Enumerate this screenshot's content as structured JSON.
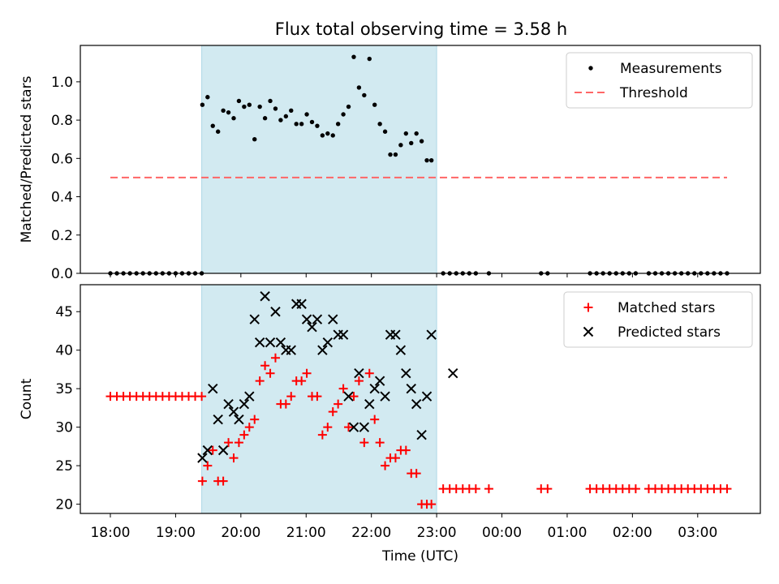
{
  "title": "Flux total observing time = 3.58 h",
  "colors": {
    "shade": "#add8e6",
    "threshold": "#ff6666",
    "matched": "#ff0000",
    "predicted": "#000000",
    "measurements": "#000000"
  },
  "chart_data": [
    {
      "type": "scatter",
      "ylabel": "Matched/Predicted stars",
      "xlabel": "",
      "x_unit": "hours since 18:00 UTC",
      "xlim": [
        -0.46,
        9.96
      ],
      "ylim": [
        0,
        1.19
      ],
      "yticks": [
        0.0,
        0.2,
        0.4,
        0.6,
        0.8,
        1.0
      ],
      "ytick_labels": [
        "0.0",
        "0.2",
        "0.4",
        "0.6",
        "0.8",
        "1.0"
      ],
      "shaded_interval": [
        1.4,
        5.0
      ],
      "legend": {
        "location": "upper right",
        "entries": [
          "Measurements",
          "Threshold"
        ]
      },
      "series": [
        {
          "name": "Measurements",
          "marker": "dot",
          "x": [
            0.0,
            0.1,
            0.2,
            0.3,
            0.4,
            0.5,
            0.6,
            0.7,
            0.8,
            0.9,
            1.0,
            1.1,
            1.2,
            1.3,
            1.4,
            1.41,
            1.49,
            1.57,
            1.65,
            1.73,
            1.81,
            1.89,
            1.97,
            2.05,
            2.13,
            2.21,
            2.29,
            2.37,
            2.45,
            2.53,
            2.61,
            2.69,
            2.77,
            2.85,
            2.93,
            3.01,
            3.09,
            3.17,
            3.25,
            3.33,
            3.41,
            3.49,
            3.57,
            3.65,
            3.73,
            3.81,
            3.89,
            3.97,
            4.05,
            4.13,
            4.21,
            4.29,
            4.37,
            4.45,
            4.53,
            4.61,
            4.69,
            4.77,
            4.85,
            4.92,
            5.1,
            5.2,
            5.3,
            5.4,
            5.5,
            5.6,
            5.8,
            6.6,
            6.7,
            7.35,
            7.45,
            7.55,
            7.65,
            7.75,
            7.85,
            7.95,
            8.05,
            8.25,
            8.35,
            8.45,
            8.55,
            8.65,
            8.75,
            8.85,
            8.95,
            9.05,
            9.15,
            9.25,
            9.35,
            9.45
          ],
          "y": [
            0,
            0,
            0,
            0,
            0,
            0,
            0,
            0,
            0,
            0,
            0,
            0,
            0,
            0,
            0,
            0.88,
            0.92,
            0.77,
            0.74,
            0.85,
            0.84,
            0.81,
            0.9,
            0.87,
            0.88,
            0.7,
            0.87,
            0.81,
            0.9,
            0.86,
            0.8,
            0.82,
            0.85,
            0.78,
            0.78,
            0.83,
            0.79,
            0.77,
            0.72,
            0.73,
            0.72,
            0.78,
            0.83,
            0.87,
            1.13,
            0.97,
            0.93,
            1.12,
            0.88,
            0.78,
            0.74,
            0.62,
            0.62,
            0.67,
            0.73,
            0.68,
            0.73,
            0.69,
            0.59,
            0.59,
            0,
            0,
            0,
            0,
            0,
            0,
            0,
            0,
            0,
            0,
            0,
            0,
            0,
            0,
            0,
            0,
            0,
            0,
            0,
            0,
            0,
            0,
            0,
            0,
            0,
            0,
            0,
            0,
            0,
            0
          ]
        },
        {
          "name": "Threshold",
          "style": "dashed",
          "x": [
            0.0,
            9.45
          ],
          "y": [
            0.5,
            0.5
          ]
        }
      ]
    },
    {
      "type": "scatter",
      "ylabel": "Count",
      "xlabel": "Time (UTC)",
      "x_unit": "hours since 18:00 UTC",
      "xlim": [
        -0.46,
        9.96
      ],
      "ylim": [
        18.8,
        48.5
      ],
      "yticks": [
        20,
        25,
        30,
        35,
        40,
        45
      ],
      "ytick_labels": [
        "20",
        "25",
        "30",
        "35",
        "40",
        "45"
      ],
      "xticks": [
        0,
        1,
        2,
        3,
        4,
        5,
        6,
        7,
        8,
        9
      ],
      "xtick_labels": [
        "18:00",
        "19:00",
        "20:00",
        "21:00",
        "22:00",
        "23:00",
        "00:00",
        "01:00",
        "02:00",
        "03:00"
      ],
      "shaded_interval": [
        1.4,
        5.0
      ],
      "legend": {
        "location": "upper right",
        "entries": [
          "Matched stars",
          "Predicted stars"
        ]
      },
      "series": [
        {
          "name": "Matched stars",
          "marker": "plus",
          "x": [
            0.0,
            0.1,
            0.2,
            0.3,
            0.4,
            0.5,
            0.6,
            0.7,
            0.8,
            0.9,
            1.0,
            1.1,
            1.2,
            1.3,
            1.4,
            1.41,
            1.49,
            1.57,
            1.65,
            1.73,
            1.81,
            1.89,
            1.97,
            2.05,
            2.13,
            2.21,
            2.29,
            2.37,
            2.45,
            2.53,
            2.61,
            2.69,
            2.77,
            2.85,
            2.93,
            3.01,
            3.09,
            3.17,
            3.25,
            3.33,
            3.41,
            3.49,
            3.57,
            3.65,
            3.73,
            3.81,
            3.89,
            3.97,
            4.05,
            4.13,
            4.21,
            4.29,
            4.37,
            4.45,
            4.53,
            4.61,
            4.69,
            4.77,
            4.85,
            4.92,
            5.1,
            5.2,
            5.3,
            5.4,
            5.5,
            5.6,
            5.8,
            6.6,
            6.7,
            7.35,
            7.45,
            7.55,
            7.65,
            7.75,
            7.85,
            7.95,
            8.05,
            8.25,
            8.35,
            8.45,
            8.55,
            8.65,
            8.75,
            8.85,
            8.95,
            9.05,
            9.15,
            9.25,
            9.35,
            9.45
          ],
          "y": [
            34,
            34,
            34,
            34,
            34,
            34,
            34,
            34,
            34,
            34,
            34,
            34,
            34,
            34,
            34,
            23,
            25,
            27,
            23,
            23,
            28,
            26,
            28,
            29,
            30,
            31,
            36,
            38,
            37,
            39,
            33,
            33,
            34,
            36,
            36,
            37,
            34,
            34,
            29,
            30,
            32,
            33,
            35,
            30,
            34,
            36,
            28,
            37,
            31,
            28,
            25,
            26,
            26,
            27,
            27,
            24,
            24,
            20,
            20,
            20,
            22,
            22,
            22,
            22,
            22,
            22,
            22,
            22,
            22,
            22,
            22,
            22,
            22,
            22,
            22,
            22,
            22,
            22,
            22,
            22,
            22,
            22,
            22,
            22,
            22,
            22,
            22,
            22,
            22,
            22
          ]
        },
        {
          "name": "Predicted stars",
          "marker": "x",
          "x": [
            1.41,
            1.49,
            1.57,
            1.65,
            1.73,
            1.81,
            1.89,
            1.97,
            2.05,
            2.13,
            2.21,
            2.29,
            2.37,
            2.45,
            2.53,
            2.61,
            2.69,
            2.77,
            2.85,
            2.93,
            3.01,
            3.09,
            3.17,
            3.25,
            3.33,
            3.41,
            3.49,
            3.57,
            3.65,
            3.73,
            3.81,
            3.89,
            3.97,
            4.05,
            4.13,
            4.21,
            4.29,
            4.37,
            4.45,
            4.53,
            4.61,
            4.69,
            4.77,
            4.85,
            4.92,
            5.25
          ],
          "y": [
            26,
            27,
            35,
            31,
            27,
            33,
            32,
            31,
            33,
            34,
            44,
            41,
            47,
            41,
            45,
            41,
            40,
            40,
            46,
            46,
            44,
            43,
            44,
            40,
            41,
            44,
            42,
            42,
            34,
            30,
            37,
            30,
            33,
            35,
            36,
            34,
            42,
            42,
            40,
            37,
            35,
            33,
            29,
            34,
            42,
            37
          ]
        }
      ]
    }
  ]
}
